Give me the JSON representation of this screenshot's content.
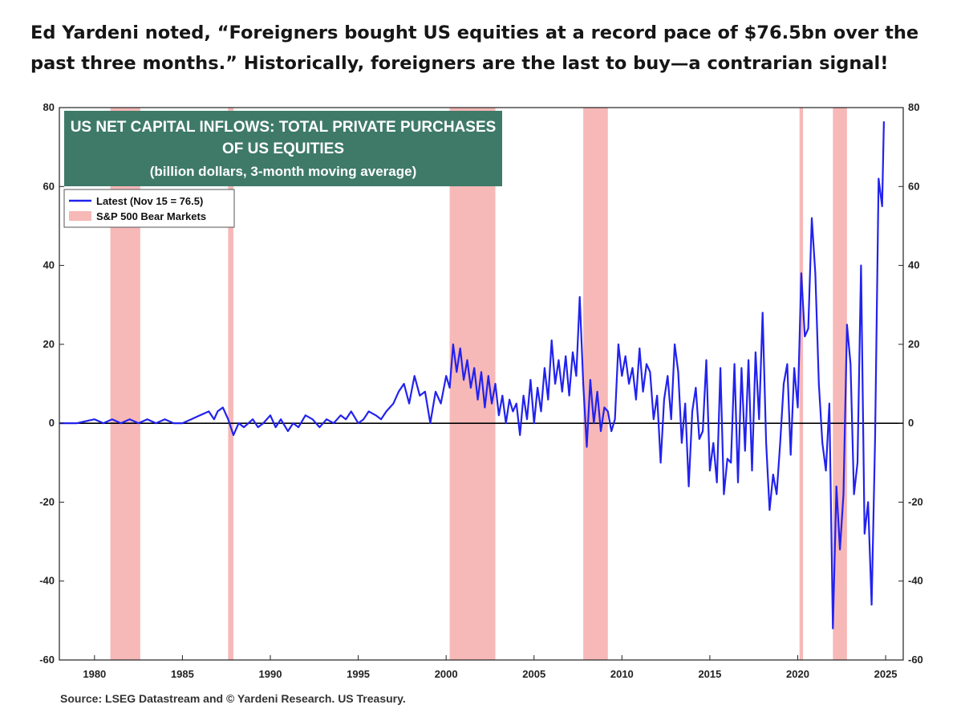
{
  "headline": {
    "line1": "Ed Yardeni noted, “Foreigners bought US equities at a record pace of $76.5bn over the",
    "line2": "past three months.” Historically, foreigners are the last to buy—a contrarian signal!"
  },
  "chart_data": {
    "type": "line",
    "title_lines": [
      "US NET CAPITAL INFLOWS: TOTAL PRIVATE PURCHASES",
      "OF US EQUITIES",
      "(billion dollars, 3-month moving average)"
    ],
    "source": "Source: LSEG Datastream and © Yardeni Research. US Treasury.",
    "xlim": [
      1978,
      2026
    ],
    "ylim": [
      -60,
      80
    ],
    "x_ticks": [
      1980,
      1985,
      1990,
      1995,
      2000,
      2005,
      2010,
      2015,
      2020,
      2025
    ],
    "y_ticks": [
      80,
      60,
      40,
      20,
      0,
      -20,
      -40,
      -60
    ],
    "legend": {
      "placement": "top-left",
      "line_label": "Latest (Nov 15 = 76.5)",
      "band_label": "S&P 500 Bear Markets"
    },
    "colors": {
      "line": "#2222ee",
      "band": "#f7b8b8",
      "title_box": "#3f7a68",
      "zero_line": "#000000"
    },
    "bear_markets": [
      [
        1980.9,
        1982.6
      ],
      [
        1987.6,
        1987.9
      ],
      [
        2000.2,
        2002.8
      ],
      [
        2007.8,
        2009.2
      ],
      [
        2020.1,
        2020.3
      ],
      [
        2022.0,
        2022.8
      ]
    ],
    "series": [
      {
        "name": "Latest (Nov 15 = 76.5)",
        "x": [
          1978.0,
          1979.0,
          1980.0,
          1980.5,
          1981.0,
          1981.5,
          1982.0,
          1982.5,
          1983.0,
          1983.5,
          1984.0,
          1984.5,
          1985.0,
          1985.5,
          1986.0,
          1986.5,
          1986.8,
          1987.0,
          1987.3,
          1987.6,
          1987.9,
          1988.2,
          1988.5,
          1989.0,
          1989.3,
          1989.6,
          1990.0,
          1990.3,
          1990.6,
          1991.0,
          1991.3,
          1991.6,
          1992.0,
          1992.4,
          1992.8,
          1993.2,
          1993.6,
          1994.0,
          1994.3,
          1994.6,
          1995.0,
          1995.3,
          1995.6,
          1996.0,
          1996.3,
          1996.6,
          1997.0,
          1997.3,
          1997.6,
          1997.9,
          1998.2,
          1998.5,
          1998.8,
          1999.1,
          1999.4,
          1999.7,
          2000.0,
          2000.2,
          2000.4,
          2000.6,
          2000.8,
          2001.0,
          2001.2,
          2001.4,
          2001.6,
          2001.8,
          2002.0,
          2002.2,
          2002.4,
          2002.6,
          2002.8,
          2003.0,
          2003.2,
          2003.4,
          2003.6,
          2003.8,
          2004.0,
          2004.2,
          2004.4,
          2004.6,
          2004.8,
          2005.0,
          2005.2,
          2005.4,
          2005.6,
          2005.8,
          2006.0,
          2006.2,
          2006.4,
          2006.6,
          2006.8,
          2007.0,
          2007.2,
          2007.4,
          2007.6,
          2007.8,
          2008.0,
          2008.2,
          2008.4,
          2008.6,
          2008.8,
          2009.0,
          2009.2,
          2009.4,
          2009.6,
          2009.8,
          2010.0,
          2010.2,
          2010.4,
          2010.6,
          2010.8,
          2011.0,
          2011.2,
          2011.4,
          2011.6,
          2011.8,
          2012.0,
          2012.2,
          2012.4,
          2012.6,
          2012.8,
          2013.0,
          2013.2,
          2013.4,
          2013.6,
          2013.8,
          2014.0,
          2014.2,
          2014.4,
          2014.6,
          2014.8,
          2015.0,
          2015.2,
          2015.4,
          2015.6,
          2015.8,
          2016.0,
          2016.2,
          2016.4,
          2016.6,
          2016.8,
          2017.0,
          2017.2,
          2017.4,
          2017.6,
          2017.8,
          2018.0,
          2018.2,
          2018.4,
          2018.6,
          2018.8,
          2019.0,
          2019.2,
          2019.4,
          2019.6,
          2019.8,
          2020.0,
          2020.2,
          2020.4,
          2020.6,
          2020.8,
          2021.0,
          2021.2,
          2021.4,
          2021.6,
          2021.8,
          2022.0,
          2022.2,
          2022.4,
          2022.6,
          2022.8,
          2023.0,
          2023.2,
          2023.4,
          2023.6,
          2023.8,
          2024.0,
          2024.2,
          2024.4,
          2024.6,
          2024.8,
          2024.9
        ],
        "y": [
          0,
          0,
          1,
          0,
          1,
          0,
          1,
          0,
          1,
          0,
          1,
          0,
          0,
          1,
          2,
          3,
          1,
          3,
          4,
          1,
          -3,
          0,
          -1,
          1,
          -1,
          0,
          2,
          -1,
          1,
          -2,
          0,
          -1,
          2,
          1,
          -1,
          1,
          0,
          2,
          1,
          3,
          0,
          1,
          3,
          2,
          1,
          3,
          5,
          8,
          10,
          5,
          12,
          7,
          8,
          0,
          8,
          5,
          12,
          9,
          20,
          13,
          19,
          11,
          16,
          9,
          14,
          6,
          13,
          4,
          12,
          5,
          10,
          2,
          7,
          0,
          6,
          3,
          5,
          -3,
          7,
          1,
          11,
          0,
          9,
          3,
          14,
          6,
          21,
          10,
          16,
          8,
          17,
          7,
          18,
          12,
          32,
          10,
          -6,
          11,
          0,
          8,
          -2,
          4,
          3,
          -2,
          1,
          20,
          12,
          17,
          10,
          14,
          6,
          19,
          8,
          15,
          13,
          1,
          7,
          -10,
          6,
          12,
          1,
          20,
          13,
          -5,
          5,
          -16,
          3,
          9,
          -4,
          -2,
          16,
          -12,
          -5,
          -15,
          14,
          -18,
          -9,
          -10,
          15,
          -15,
          14,
          -7,
          16,
          -12,
          18,
          1,
          28,
          -5,
          -22,
          -13,
          -18,
          -5,
          10,
          15,
          -8,
          14,
          4,
          38,
          22,
          24,
          52,
          38,
          10,
          -5,
          -12,
          5,
          -52,
          -16,
          -32,
          -18,
          25,
          15,
          -18,
          -10,
          40,
          -28,
          -20,
          -46,
          -4,
          62,
          55,
          76.5
        ]
      }
    ]
  }
}
